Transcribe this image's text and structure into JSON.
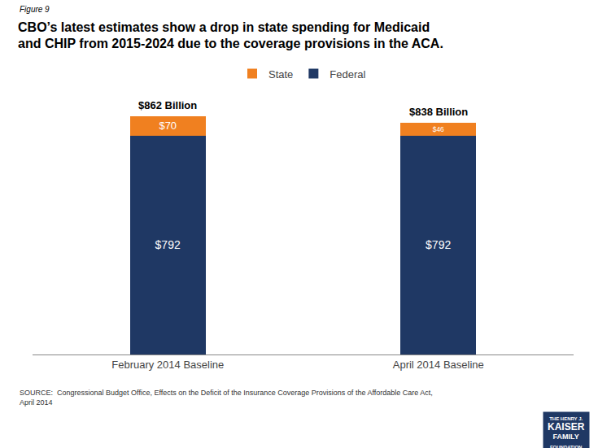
{
  "chart_data": {
    "type": "bar",
    "title": "CBO’s latest estimates show a drop in state spending for Medicaid\nand CHIP from 2015-2024 due to the coverage provisions in the ACA.",
    "categories": [
      "February 2014 Baseline",
      "April 2014 Baseline"
    ],
    "series": [
      {
        "name": "Federal",
        "color": "#1F3864",
        "values": [
          792,
          792
        ],
        "value_labels": [
          "$792",
          "$792"
        ]
      },
      {
        "name": "State",
        "color": "#F08020",
        "values": [
          70,
          46
        ],
        "value_labels": [
          "$70",
          "$46"
        ]
      }
    ],
    "totals": {
      "values": [
        862,
        838
      ],
      "value_labels": [
        "$862 Billion",
        "$838 Billion"
      ]
    },
    "stacked": true,
    "data_labels": true,
    "ylim": [
      0,
      900
    ],
    "tick_labels": "x",
    "grid": false,
    "legend": "top",
    "annotations": [
      {
        "text": "Figure 9"
      },
      {
        "text": "SOURCE:  Congressional Budget Office, Effects on the Deficit of the Insurance Coverage Provisions of the Affordable Care Act,\nApril 2014"
      },
      {
        "text": "THE HENRY J.\nKAISER\nFAMILY\nFOUNDATION",
        "color": "#1F3864"
      }
    ]
  }
}
